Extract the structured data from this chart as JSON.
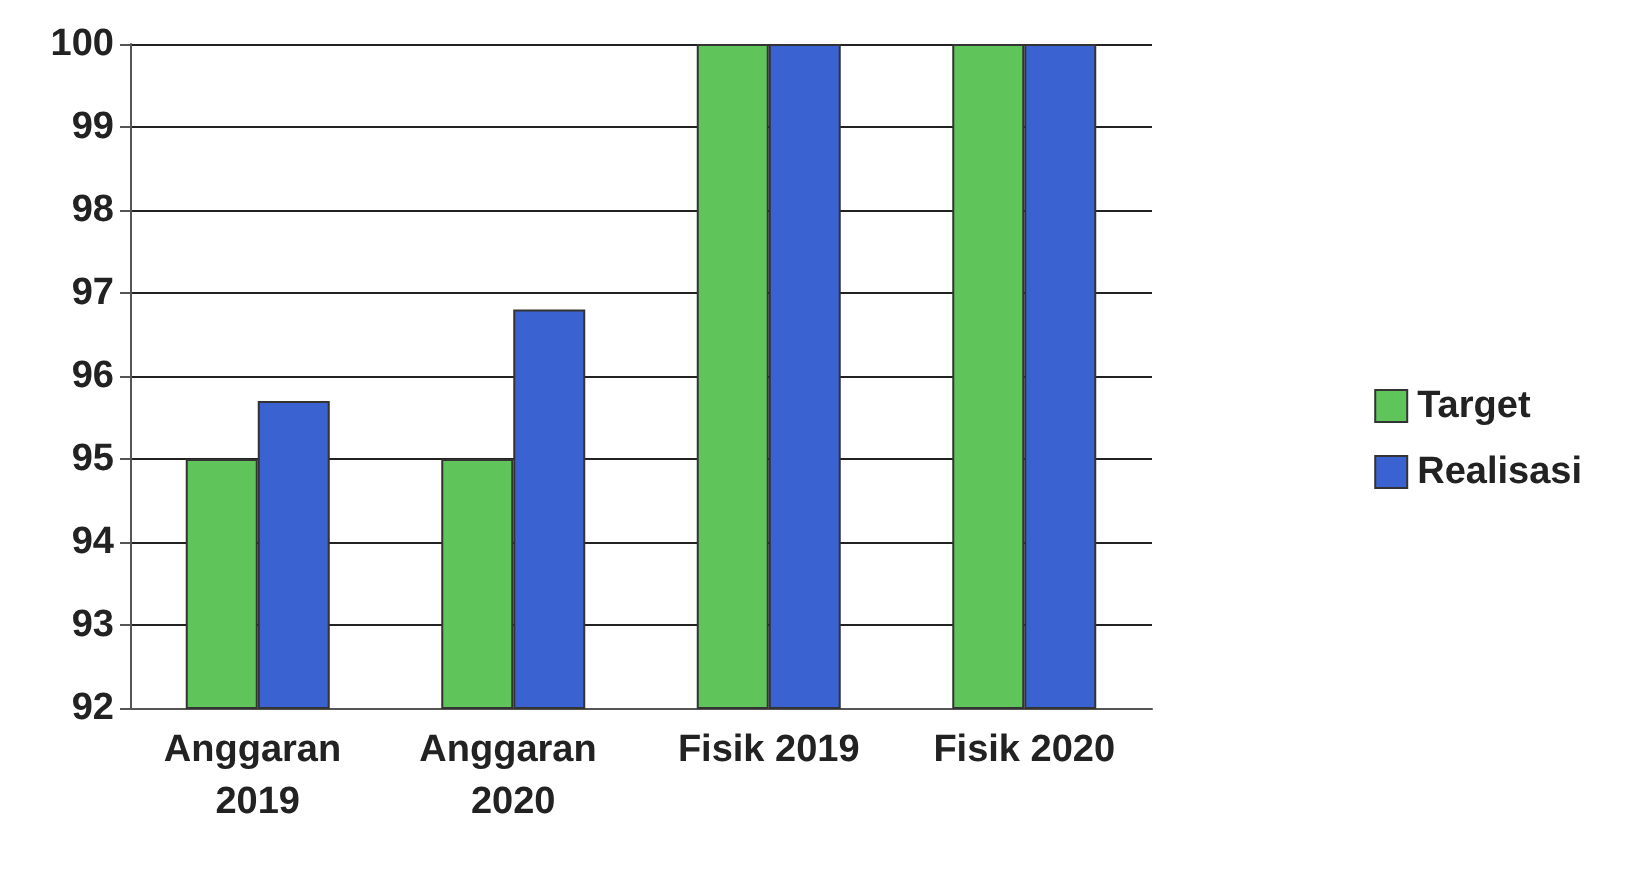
{
  "chart_data": {
    "type": "bar",
    "categories": [
      "Anggaran 2019",
      "Anggaran 2020",
      "Fisik 2019",
      "Fisik 2020"
    ],
    "series": [
      {
        "name": "Target",
        "color": "#5fc45a",
        "values": [
          95,
          95,
          100,
          100
        ]
      },
      {
        "name": "Realisasi",
        "color": "#3a62d0",
        "values": [
          95.7,
          96.8,
          100,
          100
        ]
      }
    ],
    "ylim": [
      92,
      100
    ],
    "yticks": [
      92,
      93,
      94,
      95,
      96,
      97,
      98,
      99,
      100
    ],
    "grid": "y",
    "legend": "right"
  }
}
